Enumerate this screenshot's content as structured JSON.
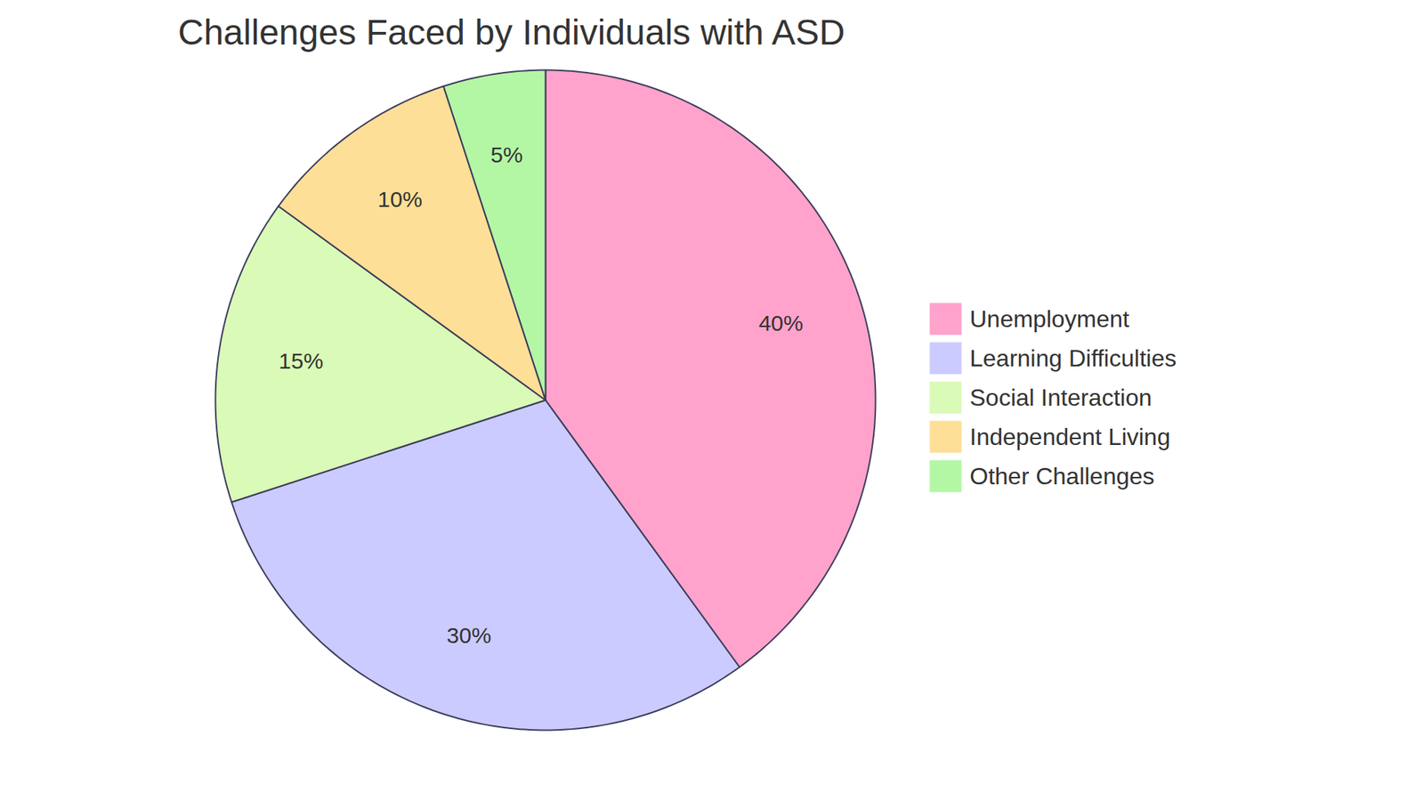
{
  "chart_data": {
    "type": "pie",
    "title": "Challenges Faced by Individuals with ASD",
    "categories": [
      "Unemployment",
      "Learning Difficulties",
      "Social Interaction",
      "Independent Living",
      "Other Challenges"
    ],
    "values": [
      40,
      30,
      15,
      10,
      5
    ],
    "value_labels": [
      "40%",
      "30%",
      "15%",
      "10%",
      "5%"
    ],
    "colors": [
      "#ffa3cc",
      "#cbcbff",
      "#dafab7",
      "#fedf97",
      "#b3f7a5"
    ],
    "data_labels": true,
    "legend": "right"
  }
}
